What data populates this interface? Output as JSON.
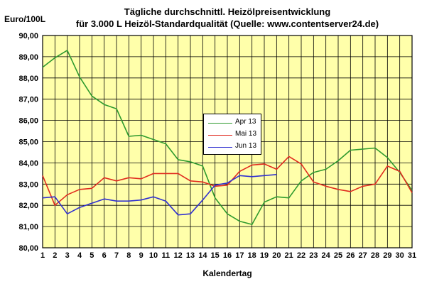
{
  "chart_data": {
    "type": "line",
    "title_line1": "Tägliche durchschnittl. Heizölpreisentwicklung",
    "title_line2": "für 3.000 L Heizöl-Standardqualität (Quelle: www.contentserver24.de)",
    "ylabel": "Euro/100L",
    "xlabel": "Kalendertag",
    "x": [
      1,
      2,
      3,
      4,
      5,
      6,
      7,
      8,
      9,
      10,
      11,
      12,
      13,
      14,
      15,
      16,
      17,
      18,
      19,
      20,
      21,
      22,
      23,
      24,
      25,
      26,
      27,
      28,
      29,
      30,
      31
    ],
    "ylim": [
      80,
      90
    ],
    "yticks": [
      "80,00",
      "81,00",
      "82,00",
      "83,00",
      "84,00",
      "85,00",
      "86,00",
      "87,00",
      "88,00",
      "89,00",
      "90,00"
    ],
    "grid": true,
    "plot_background": "#ffffaa",
    "legend_position": "center",
    "series": [
      {
        "name": "Apr 13",
        "color": "#2e9a2e",
        "values": [
          88.5,
          88.95,
          89.3,
          88.05,
          87.15,
          86.75,
          86.55,
          85.25,
          85.3,
          85.1,
          84.9,
          84.15,
          84.05,
          83.85,
          82.35,
          81.6,
          81.25,
          81.1,
          82.15,
          82.4,
          82.35,
          83.15,
          83.55,
          83.7,
          84.1,
          84.6,
          84.65,
          84.7,
          84.25,
          83.55,
          82.7
        ]
      },
      {
        "name": "Mai 13",
        "color": "#e02a1e",
        "values": [
          83.4,
          82.0,
          82.5,
          82.75,
          82.8,
          83.3,
          83.15,
          83.3,
          83.25,
          83.5,
          83.5,
          83.5,
          83.15,
          83.1,
          82.9,
          82.95,
          83.6,
          83.9,
          83.95,
          83.7,
          84.3,
          83.95,
          83.1,
          82.9,
          82.75,
          82.65,
          82.9,
          83.0,
          83.85,
          83.6,
          82.6
        ]
      },
      {
        "name": "Jun 13",
        "color": "#3030d0",
        "values": [
          82.35,
          82.4,
          81.6,
          81.9,
          82.1,
          82.3,
          82.2,
          82.2,
          82.25,
          82.4,
          82.2,
          81.55,
          81.6,
          82.25,
          82.95,
          83.05,
          83.4,
          83.35,
          83.4,
          83.45,
          null,
          null,
          null,
          null,
          null,
          null,
          null,
          null,
          null,
          null,
          null
        ]
      }
    ]
  }
}
